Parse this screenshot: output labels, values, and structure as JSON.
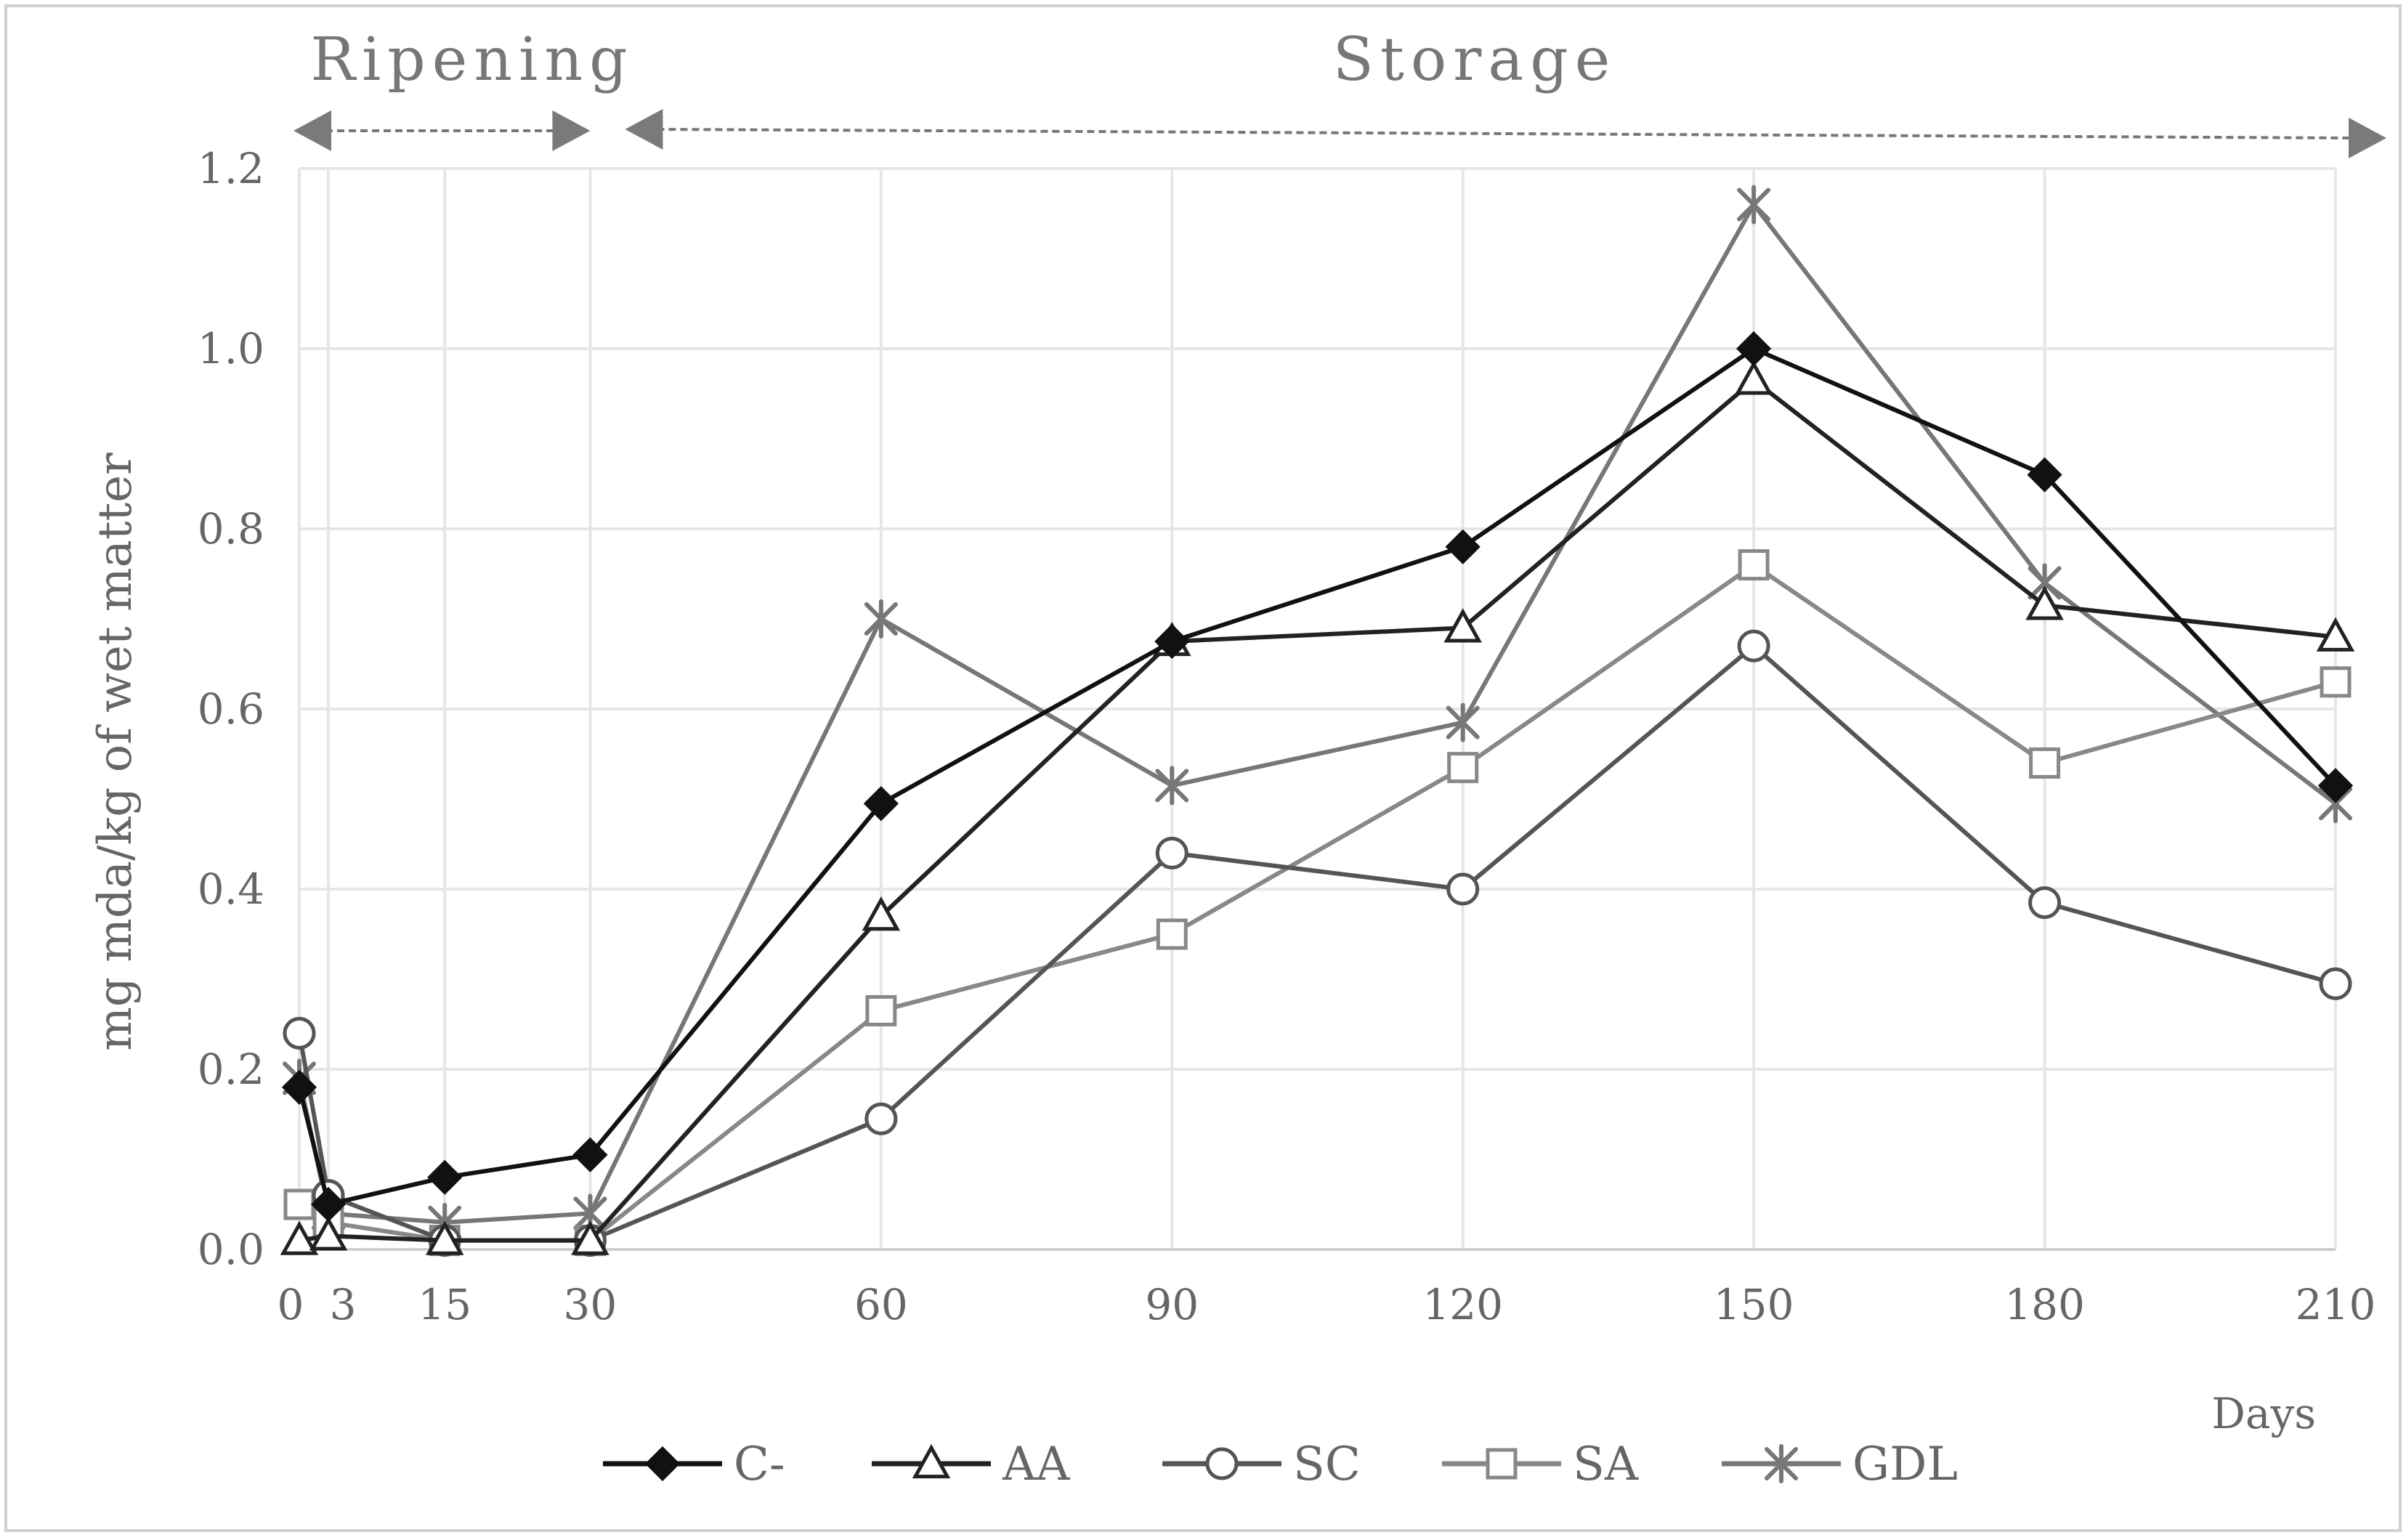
{
  "chart_data": {
    "type": "line",
    "ylabel": "mg mda/kg of wet matter",
    "xlabel": "Days",
    "x_tick_labels": [
      "0",
      "3",
      "15",
      "30",
      "60",
      "90",
      "120",
      "150",
      "180",
      "210"
    ],
    "y_tick_labels": [
      "0.0",
      "0.2",
      "0.4",
      "0.6",
      "0.8",
      "1.0",
      "1.2"
    ],
    "ylim": [
      0,
      1.2
    ],
    "grid": true,
    "legend_position": "bottom",
    "phases": [
      {
        "label": "Ripening",
        "start_day": 0,
        "end_day": 30
      },
      {
        "label": "Storage",
        "start_day": 30,
        "end_day": 210
      }
    ],
    "series": [
      {
        "name": "C-",
        "color": "#111111",
        "marker": "diamond",
        "filled": true,
        "values": [
          0.18,
          0.05,
          0.08,
          0.105,
          0.495,
          0.675,
          0.78,
          1.0,
          0.86,
          0.515
        ]
      },
      {
        "name": "AA",
        "color": "#222222",
        "marker": "triangle",
        "filled": false,
        "values": [
          0.01,
          0.015,
          0.01,
          0.01,
          0.37,
          0.675,
          0.69,
          0.965,
          0.715,
          0.68
        ]
      },
      {
        "name": "SC",
        "color": "#555555",
        "marker": "circle",
        "filled": false,
        "values": [
          0.24,
          0.06,
          0.01,
          0.01,
          0.145,
          0.44,
          0.4,
          0.67,
          0.385,
          0.295
        ]
      },
      {
        "name": "SA",
        "color": "#888888",
        "marker": "square",
        "filled": false,
        "values": [
          0.05,
          0.03,
          0.01,
          0.01,
          0.265,
          0.35,
          0.535,
          0.76,
          0.54,
          0.63
        ]
      },
      {
        "name": "GDL",
        "color": "#777777",
        "marker": "star",
        "filled": false,
        "values": [
          0.19,
          0.04,
          0.03,
          0.04,
          0.7,
          0.515,
          0.585,
          1.16,
          0.74,
          0.495
        ]
      }
    ]
  }
}
